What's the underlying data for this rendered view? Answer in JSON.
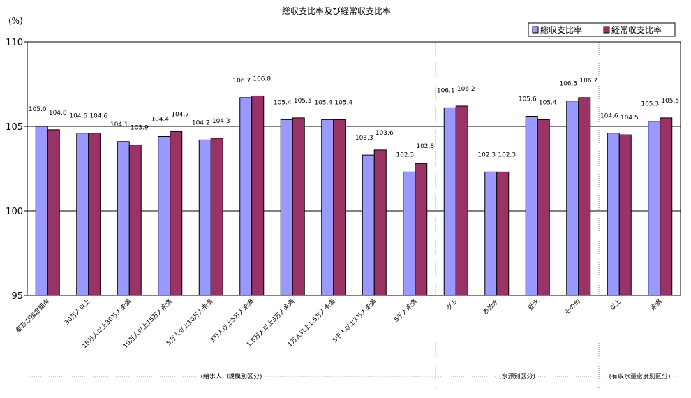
{
  "chart_data": {
    "type": "bar",
    "title": "総収支比率及び経常収支比率",
    "unit_label": "(%)",
    "ylim": [
      95,
      110
    ],
    "y_ticks": [
      "95",
      "100",
      "105",
      "110"
    ],
    "gridlines": [
      100,
      105
    ],
    "legend_position": "top-right",
    "categories": [
      "都及び指定都市",
      "30万人以上",
      "15万人以上30万人未満",
      "10万人以上15万人未満",
      "5万人以上10万人未満",
      "3万人以上5万人未満",
      "1.5万人以上3万人未満",
      "1万人以上1.5万人未満",
      "5千人以上1万人未満",
      "5千人未満",
      "ダム",
      "表流水",
      "受水",
      "その他",
      "以上",
      "未満"
    ],
    "series": [
      {
        "name": "総収支比率",
        "color": "#9999ff",
        "values": [
          105.0,
          104.6,
          104.1,
          104.4,
          104.2,
          106.7,
          105.4,
          105.4,
          103.3,
          102.3,
          106.1,
          102.3,
          105.6,
          106.5,
          104.6,
          105.3
        ],
        "labels": [
          "105.0",
          "104.6",
          "104.1",
          "104.4",
          "104.2",
          "106.7",
          "105.4",
          "105.4",
          "103.3",
          "102.3",
          "106.1",
          "102.3",
          "105.6",
          "106.5",
          "104.6",
          "105.3"
        ]
      },
      {
        "name": "経常収支比率",
        "color": "#993366",
        "values": [
          104.8,
          104.6,
          103.9,
          104.7,
          104.3,
          106.8,
          105.5,
          105.4,
          103.6,
          102.8,
          106.2,
          102.3,
          105.4,
          106.7,
          104.5,
          105.5
        ],
        "labels": [
          "104.8",
          "104.6",
          "103.9",
          "104.7",
          "104.3",
          "106.8",
          "105.5",
          "105.4",
          "103.6",
          "102.8",
          "106.2",
          "102.3",
          "105.4",
          "106.7",
          "104.5",
          "105.5"
        ]
      }
    ],
    "groups": [
      {
        "label": "(給水人口規模別区分)",
        "start": 0,
        "end": 9
      },
      {
        "label": "(水源別区分)",
        "start": 10,
        "end": 13
      },
      {
        "label": "(有収水量密度別区分)",
        "start": 14,
        "end": 15
      }
    ]
  }
}
